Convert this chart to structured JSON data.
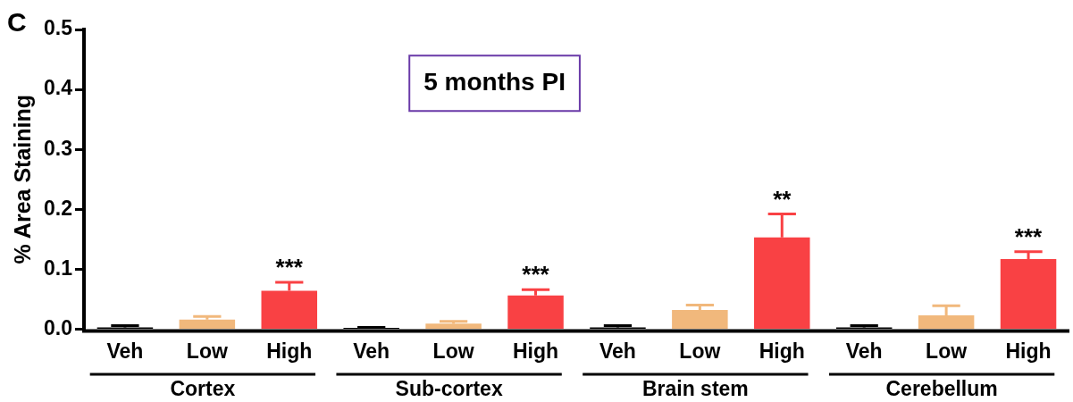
{
  "chart_data": {
    "type": "bar",
    "title": "5 months PI",
    "ylabel": "% Area Staining",
    "categories": [
      "Veh",
      "Low",
      "High",
      "Veh",
      "Low",
      "High",
      "Veh",
      "Low",
      "High",
      "Veh",
      "Low",
      "High"
    ],
    "values": [
      0.003,
      0.016,
      0.064,
      0.002,
      0.009,
      0.056,
      0.003,
      0.032,
      0.153,
      0.003,
      0.023,
      0.117
    ],
    "colors": [
      "#000000",
      "#f1b87c",
      "#f94144",
      "#000000",
      "#f1b87c",
      "#f94144",
      "#000000",
      "#f1b87c",
      "#f94144",
      "#000000",
      "#f1b87c",
      "#f94144"
    ],
    "errors": [
      [
        0.003,
        0.006
      ],
      [
        0.016,
        0.021
      ],
      [
        0.064,
        0.078
      ],
      [
        0.002,
        0.003
      ],
      [
        0.009,
        0.013
      ],
      [
        0.056,
        0.066
      ],
      [
        0.003,
        0.006
      ],
      [
        0.032,
        0.04
      ],
      [
        0.153,
        0.192
      ],
      [
        0.003,
        0.006
      ],
      [
        0.023,
        0.039
      ],
      [
        0.117,
        0.129
      ]
    ],
    "value_labels": [
      null,
      null,
      "***",
      null,
      null,
      "***",
      null,
      null,
      "**",
      null,
      null,
      "***"
    ],
    "ylim": [
      0,
      0.5
    ],
    "yticks": [
      {
        "value": 0,
        "label": "0.0"
      },
      {
        "value": 0.1,
        "label": "0.1"
      },
      {
        "value": 0.2,
        "label": "0.2"
      },
      {
        "value": 0.3,
        "label": "0.3"
      },
      {
        "value": 0.4,
        "label": "0.4"
      },
      {
        "value": 0.5,
        "label": "0.5"
      }
    ],
    "annotations": [
      "C",
      "Cortex",
      "Sub-cortex",
      "Brain stem",
      "Cerebellum"
    ],
    "grid": false,
    "legend": false
  }
}
